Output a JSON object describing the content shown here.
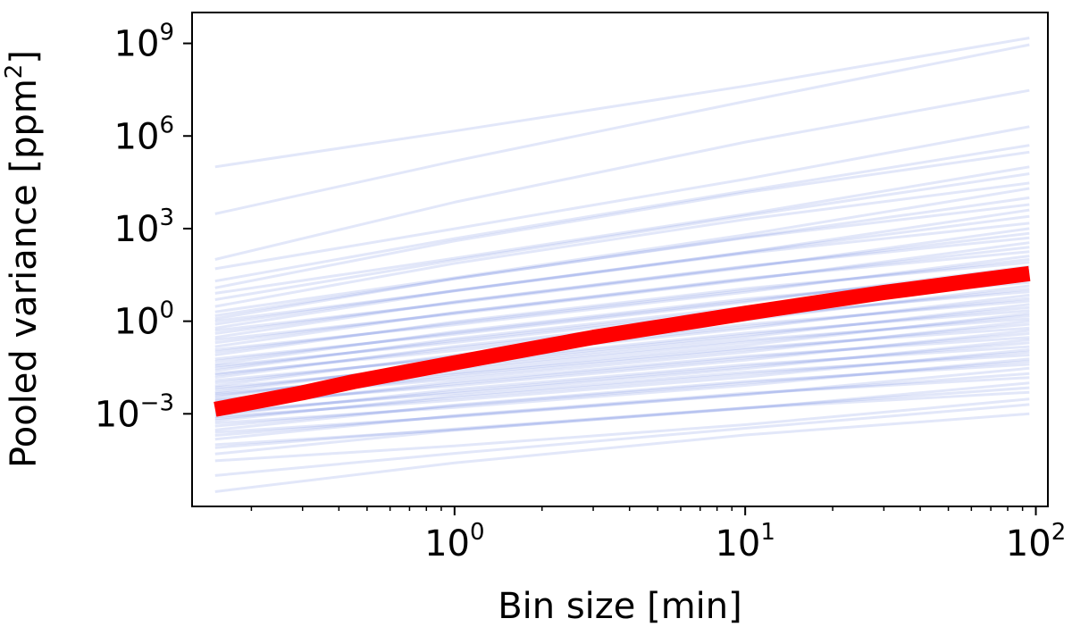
{
  "chart_data": {
    "type": "line",
    "xscale": "log",
    "yscale": "log",
    "xlim": [
      0.125,
      110
    ],
    "ylim": [
      1e-06,
      10000000000.0
    ],
    "grid": false,
    "legend": "none",
    "xlabel": "Bin size [min]",
    "ylabel": {
      "main": "Pooled variance [ppm",
      "sup": "2",
      "close": "]"
    },
    "xticks": [
      {
        "value": 1,
        "base": "10",
        "exp": "0"
      },
      {
        "value": 10,
        "base": "10",
        "exp": "1"
      },
      {
        "value": 100,
        "base": "10",
        "exp": "2"
      }
    ],
    "yticks": [
      {
        "value": 0.001,
        "base": "10",
        "exp": "−3"
      },
      {
        "value": 1,
        "base": "10",
        "exp": "0"
      },
      {
        "value": 1000,
        "base": "10",
        "exp": "3"
      },
      {
        "value": 1000000,
        "base": "10",
        "exp": "6"
      },
      {
        "value": 1000000000,
        "base": "10",
        "exp": "9"
      }
    ],
    "series": [
      {
        "role": "mean",
        "color": "#ff0000",
        "x": [
          0.15,
          0.3,
          0.45,
          1,
          3,
          10,
          30,
          60,
          95
        ],
        "y": [
          0.0014,
          0.0048,
          0.011,
          0.045,
          0.3,
          1.8,
          8.5,
          20,
          35
        ]
      },
      {
        "role": "individual",
        "color": "#6f86e0",
        "x": [
          0.15,
          1,
          10,
          95
        ],
        "start_y": [
          100000,
          3000,
          100,
          50,
          20,
          12,
          8,
          5,
          3,
          2,
          1.5,
          1.2,
          1,
          0.8,
          0.6,
          0.5,
          0.4,
          0.3,
          0.25,
          0.2,
          0.15,
          0.12,
          0.1,
          0.08,
          0.06,
          0.05,
          0.04,
          0.035,
          0.03,
          0.025,
          0.02,
          0.018,
          0.015,
          0.012,
          0.01,
          0.008,
          0.007,
          0.006,
          0.005,
          0.0045,
          0.004,
          0.0035,
          0.003,
          0.0027,
          0.0024,
          0.002,
          0.0017,
          0.0015,
          0.0012,
          0.001,
          0.0009,
          0.0008,
          0.0007,
          0.0006,
          0.0005,
          0.0004,
          0.0003,
          0.00025,
          0.0002,
          0.00015,
          0.0001,
          8e-05,
          5e-05,
          3e-05,
          1e-05,
          3e-06
        ],
        "end_y": [
          1500000000,
          900000000,
          30000000,
          2000000,
          500000,
          300000,
          100000,
          60000,
          30000,
          20000,
          10000,
          6000,
          4000,
          2500,
          1500,
          1000,
          700,
          500,
          350,
          250,
          180,
          130,
          100,
          80,
          60,
          45,
          35,
          28,
          22,
          18,
          14,
          11,
          9,
          7,
          5.5,
          4.5,
          3.5,
          2.8,
          2.2,
          1.8,
          1.5,
          1.2,
          1,
          0.8,
          0.6,
          0.5,
          0.4,
          0.3,
          0.25,
          0.2,
          0.15,
          0.12,
          0.1,
          0.08,
          0.06,
          0.05,
          0.04,
          0.03,
          0.02,
          0.015,
          0.01,
          0.007,
          0.005,
          0.003,
          0.002,
          0.001
        ]
      }
    ]
  }
}
